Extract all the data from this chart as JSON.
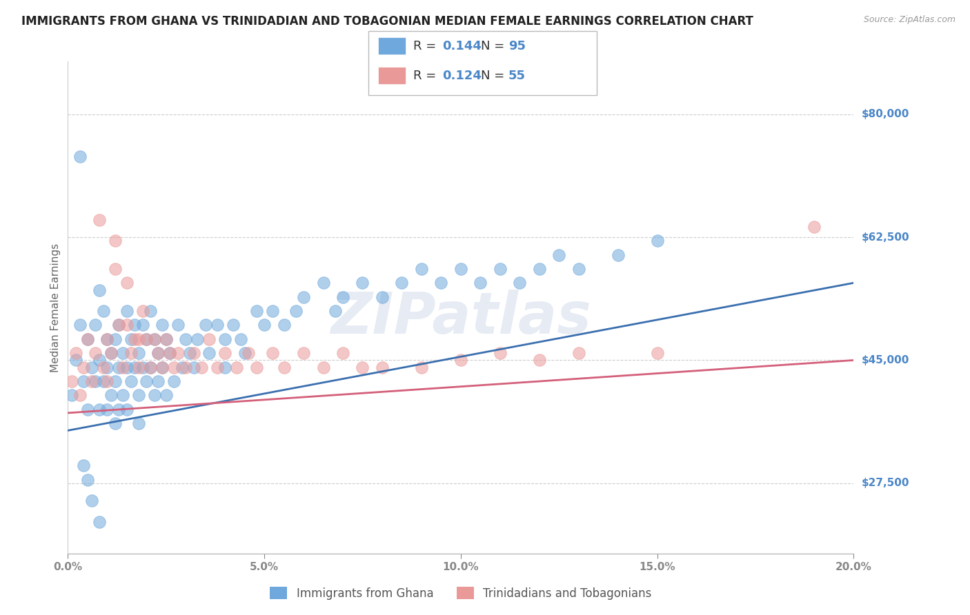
{
  "title": "IMMIGRANTS FROM GHANA VS TRINIDADIAN AND TOBAGONIAN MEDIAN FEMALE EARNINGS CORRELATION CHART",
  "source": "Source: ZipAtlas.com",
  "xlabel": "",
  "ylabel": "Median Female Earnings",
  "xlim": [
    0.0,
    0.2
  ],
  "ylim": [
    17500,
    87500
  ],
  "yticks": [
    27500,
    45000,
    62500,
    80000
  ],
  "ytick_labels": [
    "$27,500",
    "$45,000",
    "$62,500",
    "$80,000"
  ],
  "xticks": [
    0.0,
    0.05,
    0.1,
    0.15,
    0.2
  ],
  "xtick_labels": [
    "0.0%",
    "5.0%",
    "10.0%",
    "15.0%",
    "20.0%"
  ],
  "watermark": "ZIPatlas",
  "series1_label": "Immigrants from Ghana",
  "series1_color": "#6fa8dc",
  "series1_R": 0.144,
  "series1_N": 95,
  "series2_label": "Trinidadians and Tobagonians",
  "series2_color": "#ea9999",
  "series2_R": 0.124,
  "series2_N": 55,
  "trend1_color": "#3a6faf",
  "trend2_color": "#d45f7a",
  "title_fontsize": 12,
  "axis_label_fontsize": 11,
  "tick_fontsize": 11,
  "legend_fontsize": 13,
  "background_color": "#ffffff",
  "grid_color": "#cccccc",
  "axis_color": "#aaaaaa",
  "tick_label_color": "#4a86c8",
  "series1_x": [
    0.001,
    0.002,
    0.003,
    0.004,
    0.005,
    0.005,
    0.006,
    0.007,
    0.007,
    0.008,
    0.008,
    0.008,
    0.009,
    0.009,
    0.01,
    0.01,
    0.01,
    0.011,
    0.011,
    0.012,
    0.012,
    0.012,
    0.013,
    0.013,
    0.013,
    0.014,
    0.014,
    0.015,
    0.015,
    0.015,
    0.016,
    0.016,
    0.017,
    0.017,
    0.018,
    0.018,
    0.018,
    0.019,
    0.019,
    0.02,
    0.02,
    0.021,
    0.021,
    0.022,
    0.022,
    0.023,
    0.023,
    0.024,
    0.024,
    0.025,
    0.025,
    0.026,
    0.027,
    0.028,
    0.029,
    0.03,
    0.031,
    0.032,
    0.033,
    0.035,
    0.036,
    0.038,
    0.04,
    0.04,
    0.042,
    0.044,
    0.045,
    0.048,
    0.05,
    0.052,
    0.055,
    0.058,
    0.06,
    0.065,
    0.068,
    0.07,
    0.075,
    0.08,
    0.085,
    0.09,
    0.095,
    0.1,
    0.105,
    0.11,
    0.115,
    0.12,
    0.125,
    0.13,
    0.14,
    0.15,
    0.003,
    0.004,
    0.005,
    0.006,
    0.008
  ],
  "series1_y": [
    40000,
    45000,
    50000,
    42000,
    48000,
    38000,
    44000,
    42000,
    50000,
    55000,
    45000,
    38000,
    52000,
    42000,
    48000,
    44000,
    38000,
    46000,
    40000,
    48000,
    42000,
    36000,
    50000,
    44000,
    38000,
    46000,
    40000,
    52000,
    44000,
    38000,
    48000,
    42000,
    50000,
    44000,
    46000,
    40000,
    36000,
    50000,
    44000,
    48000,
    42000,
    52000,
    44000,
    48000,
    40000,
    46000,
    42000,
    50000,
    44000,
    48000,
    40000,
    46000,
    42000,
    50000,
    44000,
    48000,
    46000,
    44000,
    48000,
    50000,
    46000,
    50000,
    48000,
    44000,
    50000,
    48000,
    46000,
    52000,
    50000,
    52000,
    50000,
    52000,
    54000,
    56000,
    52000,
    54000,
    56000,
    54000,
    56000,
    58000,
    56000,
    58000,
    56000,
    58000,
    56000,
    58000,
    60000,
    58000,
    60000,
    62000,
    74000,
    30000,
    28000,
    25000,
    22000
  ],
  "series2_x": [
    0.001,
    0.002,
    0.003,
    0.004,
    0.005,
    0.006,
    0.007,
    0.008,
    0.009,
    0.01,
    0.01,
    0.011,
    0.012,
    0.012,
    0.013,
    0.014,
    0.015,
    0.015,
    0.016,
    0.017,
    0.018,
    0.018,
    0.019,
    0.02,
    0.021,
    0.022,
    0.023,
    0.024,
    0.025,
    0.026,
    0.027,
    0.028,
    0.03,
    0.032,
    0.034,
    0.036,
    0.038,
    0.04,
    0.043,
    0.046,
    0.048,
    0.052,
    0.055,
    0.06,
    0.065,
    0.07,
    0.075,
    0.08,
    0.09,
    0.1,
    0.11,
    0.12,
    0.13,
    0.15,
    0.19
  ],
  "series2_y": [
    42000,
    46000,
    40000,
    44000,
    48000,
    42000,
    46000,
    65000,
    44000,
    48000,
    42000,
    46000,
    58000,
    62000,
    50000,
    44000,
    50000,
    56000,
    46000,
    48000,
    44000,
    48000,
    52000,
    48000,
    44000,
    48000,
    46000,
    44000,
    48000,
    46000,
    44000,
    46000,
    44000,
    46000,
    44000,
    48000,
    44000,
    46000,
    44000,
    46000,
    44000,
    46000,
    44000,
    46000,
    44000,
    46000,
    44000,
    44000,
    44000,
    45000,
    46000,
    45000,
    46000,
    46000,
    64000
  ],
  "trend1_x": [
    0.0,
    0.2
  ],
  "trend1_y": [
    35000,
    56000
  ],
  "trend2_x": [
    0.0,
    0.2
  ],
  "trend2_y": [
    37500,
    45000
  ]
}
